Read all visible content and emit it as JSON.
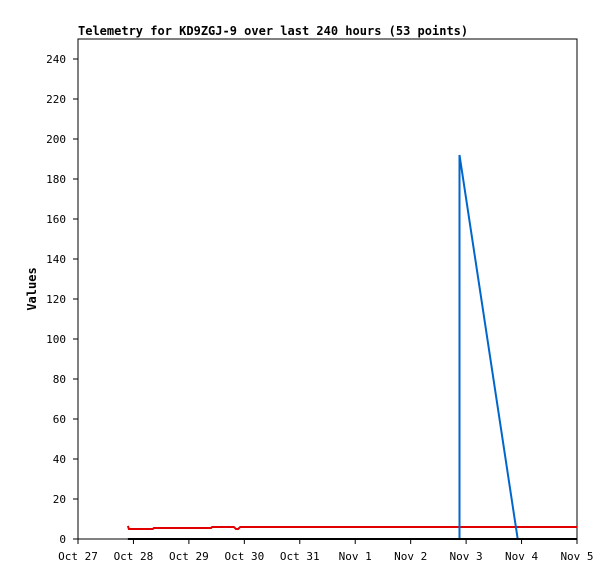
{
  "chart_data": {
    "type": "line",
    "title": "Telemetry for KD9ZGJ-9 over last 240 hours (53 points)",
    "xlabel": "",
    "ylabel": "Values",
    "x_ticks": [
      "Oct 27",
      "Oct 28",
      "Oct 29",
      "Oct 30",
      "Oct 31",
      "Nov 1",
      "Nov 2",
      "Nov 3",
      "Nov 4",
      "Nov 5"
    ],
    "xlim": [
      0,
      240
    ],
    "ylim": [
      0,
      250
    ],
    "y_ticks": [
      0,
      20,
      40,
      60,
      80,
      100,
      120,
      140,
      160,
      180,
      200,
      220,
      240
    ],
    "grid": false,
    "legend": "none",
    "series": [
      {
        "color": "#e00000",
        "x": [
          24,
          24.5,
          36,
          36.5,
          52,
          52.5,
          64,
          64.5,
          75,
          76,
          77,
          78,
          79,
          240
        ],
        "y": [
          6.5,
          5,
          5,
          5.5,
          5.5,
          5.5,
          5.5,
          6,
          6,
          5,
          5,
          6,
          6,
          6
        ]
      },
      {
        "color": "#0066cc",
        "x": [
          183.5,
          183.5,
          211.5
        ],
        "y": [
          0,
          192,
          0
        ]
      },
      {
        "color": "#000000",
        "x": [
          24,
          240
        ],
        "y": [
          0,
          0
        ]
      }
    ]
  }
}
